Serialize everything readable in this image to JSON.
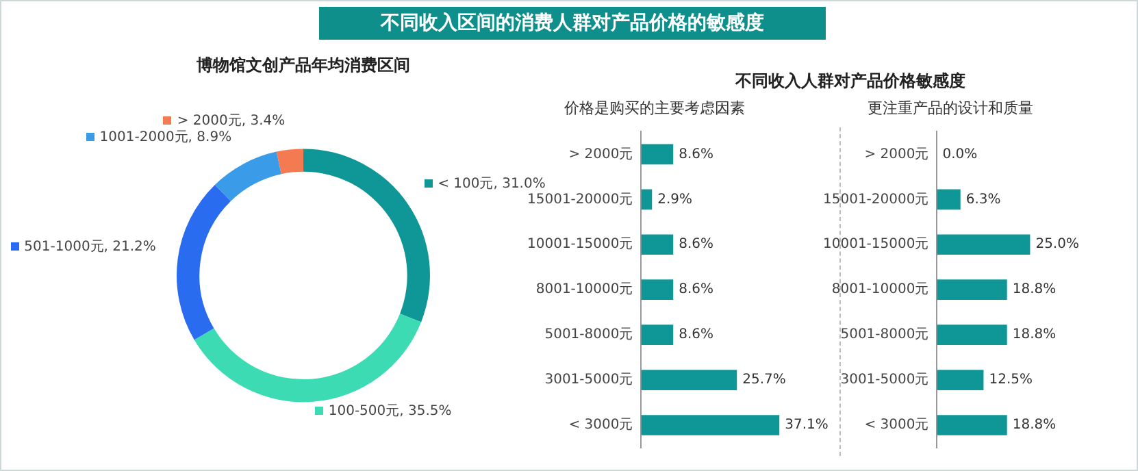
{
  "chart_data": [
    {
      "type": "other",
      "title": "不同收入区间的消费人群对产品价格的敏感度"
    },
    {
      "type": "donut",
      "title": "博物馆文创产品年均消费区间",
      "categories": [
        "< 100元",
        "100-500元",
        "501-1000元",
        "1001-2000元",
        "> 2000元"
      ],
      "values": [
        31.0,
        35.5,
        21.2,
        8.9,
        3.4
      ],
      "colors": [
        "#0f9696",
        "#3ddbb3",
        "#2a6cf0",
        "#3a9be8",
        "#f47a52"
      ],
      "value_labels": [
        "31.0%",
        "35.5%",
        "21.2%",
        "8.9%",
        "3.4%"
      ],
      "legend": "left"
    },
    {
      "type": "other",
      "title": "不同收入人群对产品价格敏感度"
    },
    {
      "type": "bar",
      "orientation": "horizontal",
      "subtitle": "价格是购买的主要考虑因素",
      "categories": [
        "> 2000元",
        "15001-20000元",
        "10001-15000元",
        "8001-10000元",
        "5001-8000元",
        "3001-5000元",
        "< 3000元"
      ],
      "values": [
        8.6,
        2.9,
        8.6,
        8.6,
        8.6,
        25.7,
        37.1
      ],
      "color": "#0f9696",
      "value_labels": [
        "8.6%",
        "2.9%",
        "8.6%",
        "8.6%",
        "8.6%",
        "25.7%",
        "37.1%"
      ],
      "grid": false,
      "legend": false,
      "tick_labels": "y"
    },
    {
      "type": "bar",
      "orientation": "horizontal",
      "subtitle": "更注重产品的设计和质量",
      "categories": [
        "> 2000元",
        "15001-20000元",
        "10001-15000元",
        "8001-10000元",
        "5001-8000元",
        "3001-5000元",
        "< 3000元"
      ],
      "values": [
        0.0,
        6.3,
        25.0,
        18.8,
        18.8,
        12.5,
        18.8
      ],
      "color": "#0f9696",
      "value_labels": [
        "0.0%",
        "6.3%",
        "25.0%",
        "18.8%",
        "18.8%",
        "12.5%",
        "18.8%"
      ],
      "grid": false,
      "legend": false,
      "tick_labels": "y"
    }
  ]
}
